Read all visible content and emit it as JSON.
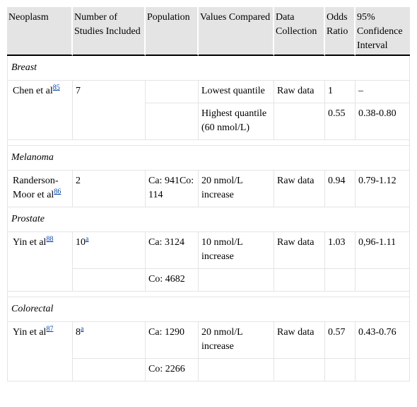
{
  "headers": {
    "neoplasm": "Neoplasm",
    "studies": "Number of Studies Included",
    "population": "Population",
    "values": "Values Compared",
    "data": "Data Collection",
    "odds": "Odds Ratio",
    "ci": "95% Confidence Interval"
  },
  "breast": {
    "label": "Breast",
    "author": "Chen et al",
    "ref": "85",
    "studies": "7",
    "row1": {
      "values": "Lowest quantile",
      "data": "Raw data",
      "odds": "1",
      "ci": "–"
    },
    "row2": {
      "values": "Highest quantile (60 nmol/L)",
      "odds": "0.55",
      "ci": "0.38-0.80"
    }
  },
  "melanoma": {
    "label": "Melanoma",
    "author": "Randerson-Moor et al",
    "ref": "86",
    "studies": "2",
    "population": "Ca: 941Co: 114",
    "values": "20 nmol/L increase",
    "data": "Raw data",
    "odds": "0.94",
    "ci": "0.79-1.12"
  },
  "prostate": {
    "label": "Prostate",
    "author": "Yin et al",
    "ref": "88",
    "studies": "10",
    "studies_note": "a",
    "population_ca": "Ca: 3124",
    "population_co": "Co: 4682",
    "values": "10 nmol/L increase",
    "data": "Raw data",
    "odds": "1.03",
    "ci": "0,96-1.11"
  },
  "colorectal": {
    "label": "Colorectal",
    "author": "Yin et al",
    "ref": "87",
    "studies": "8",
    "studies_note": "a",
    "population_ca": "Ca: 1290",
    "population_co": "Co: 2266",
    "values": "20 nmol/L increase",
    "data": "Raw data",
    "odds": "0.57",
    "ci": "0.43-0.76"
  }
}
